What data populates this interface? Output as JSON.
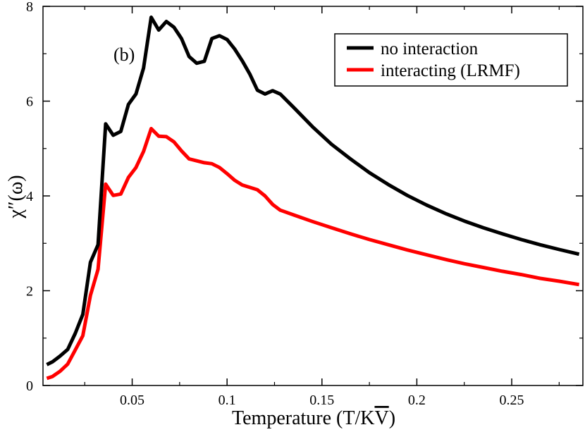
{
  "chart_data": {
    "type": "line",
    "title": "",
    "annotation": "(b)",
    "xlabel": "Temperature (T/KV̅)",
    "xlabel_main": "Temperature (T/K",
    "xlabel_v": "V",
    "xlabel_close": ")",
    "ylabel": "χ″(ω)",
    "ylabel_chi": "χ",
    "ylabel_rest": "″(ω)",
    "xlim": [
      0.003,
      0.2875
    ],
    "ylim": [
      0,
      8
    ],
    "xticks": [
      0.05,
      0.1,
      0.15,
      0.2,
      0.25
    ],
    "xtick_labels": [
      "0.05",
      "0.1",
      "0.15",
      "0.2",
      "0.25"
    ],
    "yticks": [
      0,
      2,
      4,
      6,
      8
    ],
    "ytick_labels": [
      "0",
      "2",
      "4",
      "6",
      "8"
    ],
    "legend_position": "top-right",
    "series": [
      {
        "name": "no interaction",
        "color": "#000000",
        "points": [
          [
            0.005,
            0.44
          ],
          [
            0.008,
            0.5
          ],
          [
            0.012,
            0.62
          ],
          [
            0.016,
            0.76
          ],
          [
            0.02,
            1.1
          ],
          [
            0.024,
            1.5
          ],
          [
            0.028,
            2.6
          ],
          [
            0.032,
            2.97
          ],
          [
            0.036,
            5.52
          ],
          [
            0.04,
            5.28
          ],
          [
            0.044,
            5.36
          ],
          [
            0.048,
            5.93
          ],
          [
            0.052,
            6.15
          ],
          [
            0.056,
            6.7
          ],
          [
            0.06,
            7.77
          ],
          [
            0.064,
            7.5
          ],
          [
            0.068,
            7.68
          ],
          [
            0.072,
            7.56
          ],
          [
            0.076,
            7.32
          ],
          [
            0.08,
            6.94
          ],
          [
            0.084,
            6.8
          ],
          [
            0.088,
            6.84
          ],
          [
            0.092,
            7.32
          ],
          [
            0.096,
            7.38
          ],
          [
            0.1,
            7.3
          ],
          [
            0.104,
            7.1
          ],
          [
            0.108,
            6.85
          ],
          [
            0.112,
            6.57
          ],
          [
            0.116,
            6.23
          ],
          [
            0.12,
            6.15
          ],
          [
            0.124,
            6.22
          ],
          [
            0.128,
            6.15
          ],
          [
            0.135,
            5.87
          ],
          [
            0.145,
            5.46
          ],
          [
            0.155,
            5.09
          ],
          [
            0.165,
            4.78
          ],
          [
            0.175,
            4.49
          ],
          [
            0.185,
            4.24
          ],
          [
            0.195,
            4.01
          ],
          [
            0.205,
            3.81
          ],
          [
            0.215,
            3.63
          ],
          [
            0.225,
            3.47
          ],
          [
            0.235,
            3.33
          ],
          [
            0.245,
            3.2
          ],
          [
            0.255,
            3.08
          ],
          [
            0.265,
            2.97
          ],
          [
            0.275,
            2.87
          ],
          [
            0.2855,
            2.77
          ]
        ]
      },
      {
        "name": "interacting (LRMF)",
        "color": "#ff0000",
        "points": [
          [
            0.005,
            0.15
          ],
          [
            0.008,
            0.19
          ],
          [
            0.012,
            0.3
          ],
          [
            0.016,
            0.45
          ],
          [
            0.02,
            0.75
          ],
          [
            0.024,
            1.05
          ],
          [
            0.028,
            1.9
          ],
          [
            0.032,
            2.45
          ],
          [
            0.036,
            4.25
          ],
          [
            0.04,
            4.01
          ],
          [
            0.044,
            4.04
          ],
          [
            0.048,
            4.39
          ],
          [
            0.052,
            4.6
          ],
          [
            0.056,
            4.94
          ],
          [
            0.06,
            5.42
          ],
          [
            0.064,
            5.26
          ],
          [
            0.068,
            5.25
          ],
          [
            0.072,
            5.14
          ],
          [
            0.076,
            4.95
          ],
          [
            0.08,
            4.78
          ],
          [
            0.084,
            4.74
          ],
          [
            0.088,
            4.7
          ],
          [
            0.092,
            4.68
          ],
          [
            0.096,
            4.6
          ],
          [
            0.1,
            4.47
          ],
          [
            0.104,
            4.33
          ],
          [
            0.108,
            4.23
          ],
          [
            0.112,
            4.18
          ],
          [
            0.116,
            4.13
          ],
          [
            0.12,
            4.0
          ],
          [
            0.124,
            3.82
          ],
          [
            0.128,
            3.7
          ],
          [
            0.135,
            3.6
          ],
          [
            0.145,
            3.46
          ],
          [
            0.155,
            3.33
          ],
          [
            0.165,
            3.2
          ],
          [
            0.175,
            3.08
          ],
          [
            0.185,
            2.97
          ],
          [
            0.195,
            2.86
          ],
          [
            0.205,
            2.76
          ],
          [
            0.215,
            2.66
          ],
          [
            0.225,
            2.57
          ],
          [
            0.235,
            2.49
          ],
          [
            0.245,
            2.41
          ],
          [
            0.255,
            2.34
          ],
          [
            0.265,
            2.26
          ],
          [
            0.275,
            2.2
          ],
          [
            0.2855,
            2.13
          ]
        ]
      }
    ]
  }
}
